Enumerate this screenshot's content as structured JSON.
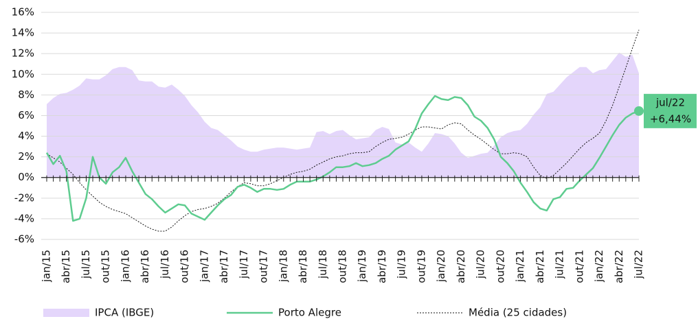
{
  "chart_data": {
    "type": "line",
    "categories": [
      "jan/15",
      null,
      null,
      "abr/15",
      null,
      null,
      "jul/15",
      null,
      null,
      "out/15",
      null,
      null,
      "jan/16",
      null,
      null,
      "abr/16",
      null,
      null,
      "jul/16",
      null,
      null,
      "out/16",
      null,
      null,
      "jan/17",
      null,
      null,
      "abr/17",
      null,
      null,
      "jul/17",
      null,
      null,
      "out/17",
      null,
      null,
      "jan/18",
      null,
      null,
      "abr/18",
      null,
      null,
      "jul/18",
      null,
      null,
      "out/18",
      null,
      null,
      "jan/19",
      null,
      null,
      "abr/19",
      null,
      null,
      "jul/19",
      null,
      null,
      "out/19",
      null,
      null,
      "jan/20",
      null,
      null,
      "abr/20",
      null,
      null,
      "jul/20",
      null,
      null,
      "out/20",
      null,
      null,
      "jan/21",
      null,
      null,
      "abr/21",
      null,
      null,
      "jul/21",
      null,
      null,
      "out/21",
      null,
      null,
      "jan/22",
      null,
      null,
      "abr/22",
      null,
      null,
      "jul/22"
    ],
    "series": [
      {
        "name": "IPCA (IBGE)",
        "color": "#e4d6fb",
        "style": "area",
        "values": [
          7.1,
          7.7,
          8.1,
          8.2,
          8.5,
          8.9,
          9.6,
          9.5,
          9.5,
          9.9,
          10.5,
          10.7,
          10.7,
          10.4,
          9.4,
          9.3,
          9.3,
          8.8,
          8.7,
          9.0,
          8.5,
          7.9,
          7.0,
          6.3,
          5.4,
          4.8,
          4.6,
          4.1,
          3.6,
          3.0,
          2.7,
          2.5,
          2.5,
          2.7,
          2.8,
          2.9,
          2.9,
          2.8,
          2.7,
          2.8,
          2.9,
          4.4,
          4.5,
          4.2,
          4.5,
          4.6,
          4.1,
          3.7,
          3.8,
          3.9,
          4.6,
          4.9,
          4.7,
          3.4,
          3.2,
          3.4,
          2.9,
          2.5,
          3.3,
          4.3,
          4.2,
          4.0,
          3.3,
          2.4,
          1.9,
          2.1,
          2.3,
          2.4,
          3.1,
          3.9,
          4.3,
          4.5,
          4.6,
          5.2,
          6.1,
          6.8,
          8.1,
          8.3,
          9.0,
          9.7,
          10.2,
          10.7,
          10.7,
          10.1,
          10.4,
          10.5,
          11.3,
          12.1,
          11.7,
          11.9,
          10.1
        ]
      },
      {
        "name": "Porto Alegre",
        "color": "#5ecc8f",
        "style": "line",
        "values": [
          2.4,
          1.3,
          2.1,
          0.6,
          -4.2,
          -4.0,
          -2.0,
          2.0,
          0.0,
          -0.6,
          0.5,
          1.0,
          1.9,
          0.6,
          -0.5,
          -1.6,
          -2.1,
          -2.8,
          -3.4,
          -3.0,
          -2.6,
          -2.7,
          -3.5,
          -3.8,
          -4.1,
          -3.4,
          -2.7,
          -2.1,
          -1.7,
          -0.9,
          -0.7,
          -1.0,
          -1.4,
          -1.1,
          -1.1,
          -1.2,
          -1.1,
          -0.7,
          -0.4,
          -0.4,
          -0.4,
          -0.2,
          0.1,
          0.5,
          1.0,
          1.0,
          1.1,
          1.4,
          1.1,
          1.2,
          1.4,
          1.8,
          2.1,
          2.7,
          3.1,
          3.5,
          4.7,
          6.2,
          7.1,
          7.9,
          7.6,
          7.5,
          7.8,
          7.7,
          7.0,
          5.9,
          5.5,
          4.8,
          3.7,
          2.0,
          1.4,
          0.6,
          -0.5,
          -1.4,
          -2.4,
          -3.0,
          -3.2,
          -2.1,
          -1.9,
          -1.1,
          -1.0,
          -0.3,
          0.3,
          0.9,
          1.9,
          3.0,
          4.1,
          5.1,
          5.8,
          6.2,
          6.44
        ]
      },
      {
        "name": "Média (25 cidades)",
        "color": "#111111",
        "style": "dotted",
        "values": [
          2.3,
          1.9,
          1.5,
          0.9,
          0.3,
          -0.5,
          -1.2,
          -1.8,
          -2.4,
          -2.8,
          -3.1,
          -3.3,
          -3.5,
          -3.9,
          -4.3,
          -4.7,
          -5.0,
          -5.2,
          -5.2,
          -4.8,
          -4.2,
          -3.7,
          -3.3,
          -3.1,
          -3.0,
          -2.8,
          -2.5,
          -2.0,
          -1.4,
          -0.9,
          -0.5,
          -0.6,
          -0.8,
          -0.8,
          -0.6,
          -0.3,
          0.0,
          0.3,
          0.5,
          0.6,
          0.8,
          1.2,
          1.5,
          1.8,
          2.0,
          2.1,
          2.3,
          2.4,
          2.4,
          2.5,
          3.0,
          3.4,
          3.7,
          3.8,
          3.9,
          4.2,
          4.6,
          4.9,
          4.9,
          4.8,
          4.7,
          5.1,
          5.3,
          5.2,
          4.6,
          4.1,
          3.7,
          3.2,
          2.7,
          2.3,
          2.3,
          2.4,
          2.3,
          2.0,
          1.0,
          0.2,
          -0.1,
          0.2,
          0.8,
          1.4,
          2.1,
          2.8,
          3.4,
          3.8,
          4.3,
          5.5,
          7.0,
          8.8,
          10.6,
          12.5,
          14.3
        ]
      }
    ],
    "ylim": [
      -6,
      16
    ],
    "yticks": [
      {
        "value": -6,
        "label": "-6%"
      },
      {
        "value": -4,
        "label": "-4%"
      },
      {
        "value": -2,
        "label": "-2%"
      },
      {
        "value": 0,
        "label": "0%"
      },
      {
        "value": 2,
        "label": "2%"
      },
      {
        "value": 4,
        "label": "4%"
      },
      {
        "value": 6,
        "label": "6%"
      },
      {
        "value": 8,
        "label": "8%"
      },
      {
        "value": 10,
        "label": "10%"
      },
      {
        "value": 12,
        "label": "12%"
      },
      {
        "value": 14,
        "label": "14%"
      },
      {
        "value": 16,
        "label": "16%"
      }
    ],
    "grid": true,
    "annotation": {
      "lines": [
        "jul/22",
        "+6,44%"
      ],
      "color": "#5ecc8f"
    }
  }
}
